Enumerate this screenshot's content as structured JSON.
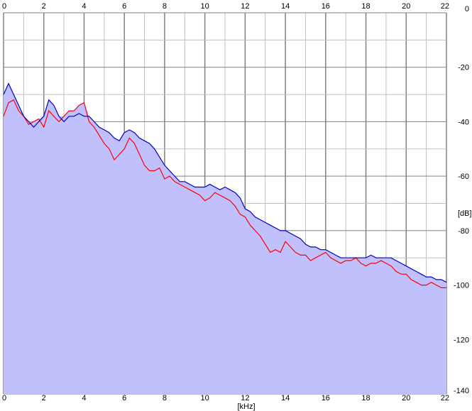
{
  "chart_data": {
    "type": "line",
    "title": "",
    "xlabel": "[kHz]",
    "ylabel": "[dB]",
    "xlim": [
      0,
      22
    ],
    "ylim": [
      -140,
      0
    ],
    "x_ticks": [
      "0",
      "2",
      "4",
      "6",
      "8",
      "10",
      "12",
      "14",
      "16",
      "18",
      "20",
      "22"
    ],
    "y_ticks": [
      "0",
      "-20",
      "-40",
      "-60",
      "-80",
      "-100",
      "-120",
      "-140"
    ],
    "grid": true,
    "legend": "none",
    "colors": {
      "background": "#ffffff",
      "fill": "#c0c0fc",
      "grid_major": "#808080",
      "grid_minor": "#c0c0c0",
      "series_1": "#ff0000",
      "series_2": "#0000c0"
    },
    "series": [
      {
        "color": "#ff0000",
        "x": [
          0,
          0.25,
          0.5,
          0.75,
          1,
          1.25,
          1.5,
          1.75,
          2,
          2.25,
          2.5,
          2.75,
          3,
          3.25,
          3.5,
          3.75,
          4,
          4.25,
          4.5,
          4.75,
          5,
          5.25,
          5.5,
          5.75,
          6,
          6.25,
          6.5,
          6.75,
          7,
          7.25,
          7.5,
          7.75,
          8,
          8.25,
          8.5,
          8.75,
          9,
          9.25,
          9.5,
          9.75,
          10,
          10.25,
          10.5,
          10.75,
          11,
          11.25,
          11.5,
          11.75,
          12,
          12.25,
          12.5,
          12.75,
          13,
          13.25,
          13.5,
          13.75,
          14,
          14.25,
          14.5,
          14.75,
          15,
          15.25,
          15.5,
          15.75,
          16,
          16.25,
          16.5,
          16.75,
          17,
          17.25,
          17.5,
          17.75,
          18,
          18.25,
          18.5,
          18.75,
          19,
          19.25,
          19.5,
          19.75,
          20,
          20.25,
          20.5,
          20.75,
          21,
          21.25,
          21.5,
          21.75,
          22
        ],
        "values": [
          -38,
          -33,
          -32,
          -36,
          -38,
          -41,
          -40,
          -39,
          -42,
          -36,
          -38,
          -40,
          -38,
          -36,
          -36,
          -34,
          -33,
          -40,
          -42,
          -45,
          -48,
          -50,
          -54,
          -52,
          -50,
          -46,
          -48,
          -52,
          -56,
          -58,
          -58,
          -57,
          -61,
          -60,
          -62,
          -63,
          -64,
          -65,
          -66,
          -67,
          -69,
          -68,
          -66,
          -67,
          -68,
          -69,
          -71,
          -74,
          -75,
          -78,
          -80,
          -82,
          -85,
          -88,
          -87,
          -88,
          -84,
          -86,
          -88,
          -89,
          -89,
          -91,
          -90,
          -89,
          -88,
          -90,
          -91,
          -92,
          -91,
          -91,
          -90,
          -92,
          -93,
          -92,
          -92,
          -91,
          -92,
          -93,
          -95,
          -96,
          -96,
          -98,
          -99,
          -100,
          -100,
          -99,
          -100,
          -101,
          -101
        ]
      },
      {
        "color": "#0000c0",
        "x": [
          0,
          0.25,
          0.5,
          0.75,
          1,
          1.25,
          1.5,
          1.75,
          2,
          2.25,
          2.5,
          2.75,
          3,
          3.25,
          3.5,
          3.75,
          4,
          4.25,
          4.5,
          4.75,
          5,
          5.25,
          5.5,
          5.75,
          6,
          6.25,
          6.5,
          6.75,
          7,
          7.25,
          7.5,
          7.75,
          8,
          8.25,
          8.5,
          8.75,
          9,
          9.25,
          9.5,
          9.75,
          10,
          10.25,
          10.5,
          10.75,
          11,
          11.25,
          11.5,
          11.75,
          12,
          12.25,
          12.5,
          12.75,
          13,
          13.25,
          13.5,
          13.75,
          14,
          14.25,
          14.5,
          14.75,
          15,
          15.25,
          15.5,
          15.75,
          16,
          16.25,
          16.5,
          16.75,
          17,
          17.25,
          17.5,
          17.75,
          18,
          18.25,
          18.5,
          18.75,
          19,
          19.25,
          19.5,
          19.75,
          20,
          20.25,
          20.5,
          20.75,
          21,
          21.25,
          21.5,
          21.75,
          22
        ],
        "values": [
          -30,
          -26,
          -30,
          -34,
          -38,
          -40,
          -42,
          -40,
          -38,
          -32,
          -34,
          -38,
          -40,
          -38,
          -38,
          -37,
          -38,
          -38,
          -40,
          -42,
          -43,
          -44,
          -46,
          -47,
          -44,
          -43,
          -44,
          -46,
          -47,
          -48,
          -50,
          -53,
          -56,
          -58,
          -60,
          -62,
          -62,
          -63,
          -64,
          -64,
          -64,
          -63,
          -64,
          -65,
          -64,
          -65,
          -66,
          -68,
          -72,
          -73,
          -75,
          -76,
          -77,
          -78,
          -79,
          -80,
          -80,
          -81,
          -82,
          -83,
          -85,
          -86,
          -86,
          -87,
          -87,
          -88,
          -89,
          -90,
          -90,
          -90,
          -90,
          -90,
          -90,
          -89,
          -90,
          -90,
          -90,
          -90,
          -91,
          -92,
          -93,
          -94,
          -95,
          -96,
          -97,
          -97,
          -98,
          -98,
          -99
        ]
      }
    ]
  }
}
